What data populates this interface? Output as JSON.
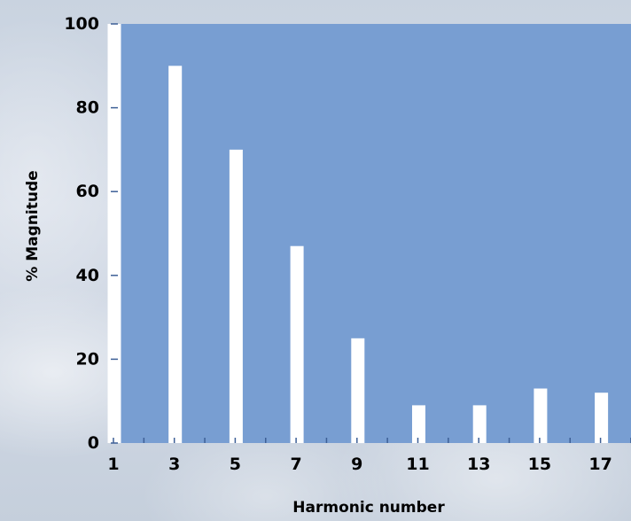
{
  "chart_data": {
    "type": "bar",
    "xlabel": "Harmonic number",
    "ylabel": "% Magnitude",
    "ylim": [
      0,
      100
    ],
    "y_ticks": [
      0,
      20,
      40,
      60,
      80,
      100
    ],
    "categories": [
      "1",
      "3",
      "5",
      "7",
      "9",
      "11",
      "13",
      "15",
      "17"
    ],
    "values": [
      100,
      90,
      70,
      47,
      25,
      9,
      9,
      13,
      12
    ],
    "plot_background": "#789ed2",
    "bar_color": "#ffffff",
    "grid": false
  }
}
